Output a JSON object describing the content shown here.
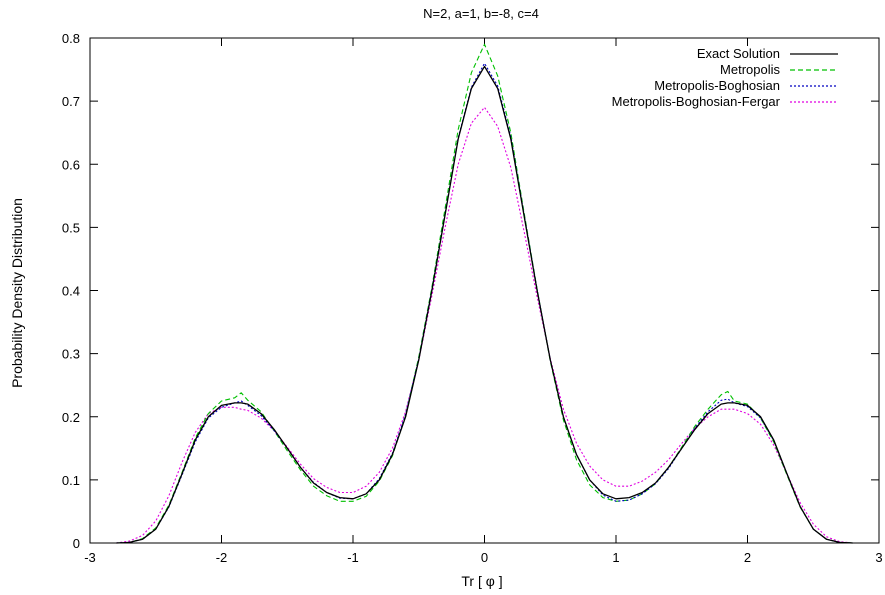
{
  "chart_data": {
    "type": "line",
    "title": "N=2, a=1, b=-8, c=4",
    "xlabel": "Tr [ φ ]",
    "ylabel": "Probability Density Distribution",
    "xlim": [
      -3,
      3
    ],
    "ylim": [
      0,
      0.8
    ],
    "xticks": [
      "-3",
      "-2",
      "-1",
      "0",
      "1",
      "2",
      "3"
    ],
    "yticks": [
      "0",
      "0.1",
      "0.2",
      "0.3",
      "0.4",
      "0.5",
      "0.6",
      "0.7",
      "0.8"
    ],
    "grid": false,
    "legend_position": "top-right",
    "x": [
      -2.8,
      -2.7,
      -2.6,
      -2.5,
      -2.4,
      -2.3,
      -2.2,
      -2.1,
      -2.0,
      -1.9,
      -1.85,
      -1.8,
      -1.7,
      -1.6,
      -1.5,
      -1.4,
      -1.3,
      -1.2,
      -1.1,
      -1.0,
      -0.9,
      -0.8,
      -0.7,
      -0.6,
      -0.5,
      -0.4,
      -0.3,
      -0.2,
      -0.1,
      0.0,
      0.1,
      0.2,
      0.3,
      0.4,
      0.5,
      0.6,
      0.7,
      0.8,
      0.9,
      1.0,
      1.1,
      1.2,
      1.3,
      1.4,
      1.5,
      1.6,
      1.7,
      1.8,
      1.85,
      1.9,
      2.0,
      2.1,
      2.2,
      2.3,
      2.4,
      2.5,
      2.6,
      2.7,
      2.8
    ],
    "series": [
      {
        "name": "Exact Solution",
        "color": "#000000",
        "dash": "solid",
        "values": [
          0.0,
          0.001,
          0.006,
          0.022,
          0.058,
          0.11,
          0.163,
          0.2,
          0.218,
          0.222,
          0.222,
          0.22,
          0.205,
          0.18,
          0.15,
          0.12,
          0.095,
          0.08,
          0.072,
          0.07,
          0.078,
          0.1,
          0.14,
          0.2,
          0.29,
          0.4,
          0.52,
          0.64,
          0.72,
          0.755,
          0.72,
          0.64,
          0.52,
          0.4,
          0.29,
          0.2,
          0.14,
          0.1,
          0.078,
          0.07,
          0.072,
          0.08,
          0.095,
          0.12,
          0.15,
          0.18,
          0.205,
          0.22,
          0.222,
          0.222,
          0.218,
          0.2,
          0.163,
          0.11,
          0.058,
          0.022,
          0.006,
          0.001,
          0.0
        ]
      },
      {
        "name": "Metropolis",
        "color": "#00c000",
        "dash": "dashed",
        "values": [
          0.0,
          0.001,
          0.007,
          0.024,
          0.06,
          0.112,
          0.166,
          0.205,
          0.225,
          0.23,
          0.238,
          0.226,
          0.208,
          0.178,
          0.146,
          0.116,
          0.09,
          0.075,
          0.066,
          0.066,
          0.074,
          0.098,
          0.138,
          0.202,
          0.295,
          0.405,
          0.53,
          0.655,
          0.745,
          0.79,
          0.74,
          0.65,
          0.525,
          0.402,
          0.288,
          0.195,
          0.132,
          0.092,
          0.072,
          0.066,
          0.068,
          0.078,
          0.094,
          0.12,
          0.152,
          0.185,
          0.212,
          0.235,
          0.24,
          0.225,
          0.22,
          0.198,
          0.16,
          0.108,
          0.057,
          0.022,
          0.006,
          0.001,
          0.0
        ]
      },
      {
        "name": "Metropolis-Boghosian",
        "color": "#0000c0",
        "dash": "dotted",
        "values": [
          0.0,
          0.001,
          0.006,
          0.022,
          0.057,
          0.108,
          0.16,
          0.198,
          0.215,
          0.222,
          0.225,
          0.218,
          0.202,
          0.178,
          0.15,
          0.12,
          0.096,
          0.08,
          0.071,
          0.07,
          0.078,
          0.102,
          0.142,
          0.204,
          0.292,
          0.402,
          0.522,
          0.642,
          0.722,
          0.76,
          0.724,
          0.644,
          0.522,
          0.402,
          0.29,
          0.2,
          0.14,
          0.1,
          0.076,
          0.066,
          0.068,
          0.078,
          0.094,
          0.118,
          0.15,
          0.182,
          0.208,
          0.226,
          0.228,
          0.222,
          0.216,
          0.198,
          0.162,
          0.11,
          0.058,
          0.022,
          0.006,
          0.001,
          0.0
        ]
      },
      {
        "name": "Metropolis-Boghosian-Fergar",
        "color": "#e000e0",
        "dash": "dotted",
        "values": [
          0.0,
          0.003,
          0.012,
          0.035,
          0.075,
          0.128,
          0.175,
          0.205,
          0.215,
          0.215,
          0.212,
          0.21,
          0.198,
          0.178,
          0.152,
          0.125,
          0.102,
          0.088,
          0.08,
          0.08,
          0.09,
          0.112,
          0.15,
          0.208,
          0.29,
          0.392,
          0.5,
          0.6,
          0.665,
          0.69,
          0.66,
          0.595,
          0.495,
          0.39,
          0.292,
          0.212,
          0.158,
          0.122,
          0.1,
          0.09,
          0.09,
          0.098,
          0.112,
          0.132,
          0.158,
          0.182,
          0.2,
          0.212,
          0.212,
          0.212,
          0.205,
          0.188,
          0.155,
          0.11,
          0.064,
          0.03,
          0.01,
          0.002,
          0.0
        ]
      }
    ]
  }
}
